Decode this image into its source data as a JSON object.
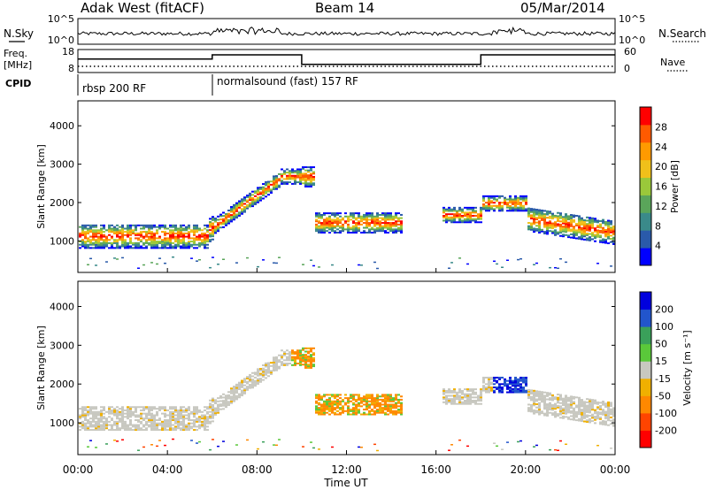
{
  "header": {
    "station": "Adak West (fitACF)",
    "beam": "Beam 14",
    "date": "05/Mar/2014"
  },
  "left_labels": {
    "nsky": "N.Sky",
    "freq": "Freq.",
    "mhz": "[MHz]",
    "cpid": "CPID"
  },
  "right_labels": {
    "nsearch": "N.Search",
    "nave": "Nave"
  },
  "noise_axis": {
    "left_ticks": [
      "10^5",
      "10^0"
    ],
    "right_ticks": [
      "10^5",
      "10^0"
    ]
  },
  "freq_axis": {
    "left_ticks": [
      "18",
      "8"
    ],
    "right_ticks": [
      "60",
      "0"
    ]
  },
  "cpid_segments": [
    {
      "label": "rbsp 200 RF",
      "start_hour": 0
    },
    {
      "label": "normalsound (fast) 157 RF",
      "start_hour": 6
    }
  ],
  "frequency_steps": [
    {
      "start_hour": 0,
      "end_hour": 6,
      "level": 0.55
    },
    {
      "start_hour": 6,
      "end_hour": 10,
      "level": 0.75
    },
    {
      "start_hour": 10,
      "end_hour": 18,
      "level": 0.3
    },
    {
      "start_hour": 18,
      "end_hour": 24,
      "level": 0.75
    }
  ],
  "chart_data": [
    {
      "type": "heatmap",
      "title": "Power",
      "ylabel": "Slant Range [km]",
      "xlabel": "",
      "xlim_hours": [
        0,
        24
      ],
      "ylim": [
        180,
        4650
      ],
      "yticks": [
        "4000",
        "3000",
        "2000",
        "1000"
      ],
      "colorbar": {
        "label": "Power [dB]",
        "ticks": [
          "28",
          "24",
          "20",
          "16",
          "12",
          "8",
          "4"
        ],
        "colors": [
          "#0000ff",
          "#2a5aaa",
          "#3a8a8a",
          "#5aa55a",
          "#9ac83a",
          "#f0c01a",
          "#ff9a00",
          "#ff5a00",
          "#ff0000"
        ]
      }
    },
    {
      "type": "heatmap",
      "title": "Velocity",
      "ylabel": "Slant Range [km]",
      "xlabel": "Time UT",
      "xlim_hours": [
        0,
        24
      ],
      "ylim": [
        180,
        4650
      ],
      "xticks": [
        "00:00",
        "04:00",
        "08:00",
        "12:00",
        "16:00",
        "20:00",
        "00:00"
      ],
      "yticks": [
        "4000",
        "3000",
        "2000",
        "1000"
      ],
      "colorbar": {
        "label": "Velocity [m s⁻¹]",
        "ticks": [
          "200",
          "100",
          "50",
          "15",
          "-15",
          "-50",
          "-100",
          "-200"
        ],
        "colors": [
          "#ff0000",
          "#ff4400",
          "#ff8800",
          "#f0b000",
          "#c8c8c0",
          "#5ac83a",
          "#3aa05a",
          "#2255cc",
          "#0000dd"
        ]
      }
    }
  ]
}
